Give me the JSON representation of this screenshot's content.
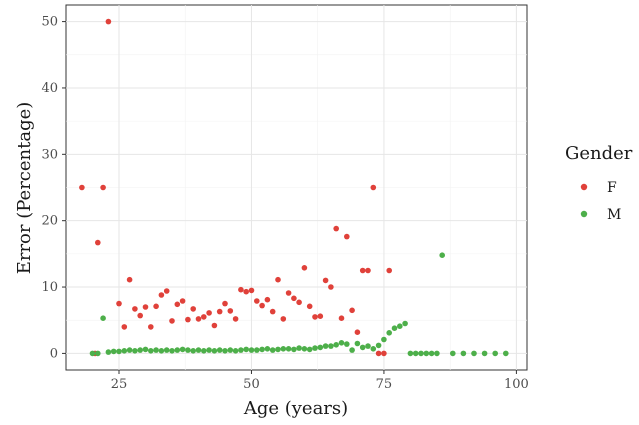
{
  "chart_data": {
    "type": "scatter",
    "xlabel": "Age (years)",
    "ylabel": "Error (Percentage)",
    "xlim": [
      15,
      102
    ],
    "ylim": [
      -2.5,
      52.5
    ],
    "xticks": [
      25,
      50,
      75,
      100
    ],
    "yticks": [
      0,
      10,
      20,
      30,
      40,
      50
    ],
    "grid": true,
    "legend": {
      "title": "Gender",
      "placement": "right"
    },
    "series": [
      {
        "name": "F",
        "color": "#e0413a",
        "points": [
          [
            18,
            25
          ],
          [
            20.5,
            0
          ],
          [
            21,
            16.7
          ],
          [
            22,
            25
          ],
          [
            23,
            50
          ],
          [
            25,
            7.5
          ],
          [
            26,
            4
          ],
          [
            27,
            11.1
          ],
          [
            28,
            6.7
          ],
          [
            29,
            5.7
          ],
          [
            30,
            7
          ],
          [
            31,
            4
          ],
          [
            32,
            7.1
          ],
          [
            33,
            8.8
          ],
          [
            34,
            9.4
          ],
          [
            35,
            4.9
          ],
          [
            36,
            7.4
          ],
          [
            37,
            7.9
          ],
          [
            38,
            5.1
          ],
          [
            39,
            6.7
          ],
          [
            40,
            5.2
          ],
          [
            41,
            5.5
          ],
          [
            42,
            6.1
          ],
          [
            43,
            4.2
          ],
          [
            44,
            6.3
          ],
          [
            45,
            7.5
          ],
          [
            46,
            6.4
          ],
          [
            47,
            5.2
          ],
          [
            48,
            9.6
          ],
          [
            49,
            9.3
          ],
          [
            50,
            9.5
          ],
          [
            51,
            7.9
          ],
          [
            52,
            7.2
          ],
          [
            53,
            8.1
          ],
          [
            54,
            6.3
          ],
          [
            55,
            11.1
          ],
          [
            56,
            5.2
          ],
          [
            57,
            9.1
          ],
          [
            58,
            8.3
          ],
          [
            59,
            7.7
          ],
          [
            60,
            12.9
          ],
          [
            61,
            7.1
          ],
          [
            62,
            5.5
          ],
          [
            63,
            5.6
          ],
          [
            64,
            11
          ],
          [
            65,
            10
          ],
          [
            66,
            18.8
          ],
          [
            67,
            5.3
          ],
          [
            68,
            17.6
          ],
          [
            69,
            6.5
          ],
          [
            70,
            3.2
          ],
          [
            71,
            12.5
          ],
          [
            72,
            12.5
          ],
          [
            73,
            25
          ],
          [
            74,
            0
          ],
          [
            75,
            0
          ],
          [
            76,
            12.5
          ]
        ]
      },
      {
        "name": "M",
        "color": "#4daf4a",
        "points": [
          [
            20,
            0
          ],
          [
            21,
            0
          ],
          [
            22,
            5.3
          ],
          [
            23,
            0.2
          ],
          [
            24,
            0.3
          ],
          [
            25,
            0.3
          ],
          [
            26,
            0.4
          ],
          [
            27,
            0.5
          ],
          [
            28,
            0.4
          ],
          [
            29,
            0.5
          ],
          [
            30,
            0.6
          ],
          [
            31,
            0.4
          ],
          [
            32,
            0.5
          ],
          [
            33,
            0.4
          ],
          [
            34,
            0.5
          ],
          [
            35,
            0.4
          ],
          [
            36,
            0.5
          ],
          [
            37,
            0.6
          ],
          [
            38,
            0.5
          ],
          [
            39,
            0.4
          ],
          [
            40,
            0.5
          ],
          [
            41,
            0.4
          ],
          [
            42,
            0.5
          ],
          [
            43,
            0.4
          ],
          [
            44,
            0.5
          ],
          [
            45,
            0.4
          ],
          [
            46,
            0.5
          ],
          [
            47,
            0.4
          ],
          [
            48,
            0.5
          ],
          [
            49,
            0.6
          ],
          [
            50,
            0.5
          ],
          [
            51,
            0.5
          ],
          [
            52,
            0.6
          ],
          [
            53,
            0.7
          ],
          [
            54,
            0.5
          ],
          [
            55,
            0.6
          ],
          [
            56,
            0.7
          ],
          [
            57,
            0.7
          ],
          [
            58,
            0.6
          ],
          [
            59,
            0.8
          ],
          [
            60,
            0.7
          ],
          [
            61,
            0.6
          ],
          [
            62,
            0.8
          ],
          [
            63,
            0.9
          ],
          [
            64,
            1.1
          ],
          [
            65,
            1.1
          ],
          [
            66,
            1.3
          ],
          [
            67,
            1.6
          ],
          [
            68,
            1.4
          ],
          [
            69,
            0.5
          ],
          [
            70,
            1.5
          ],
          [
            71,
            0.9
          ],
          [
            72,
            1.1
          ],
          [
            73,
            0.7
          ],
          [
            74,
            1.2
          ],
          [
            75,
            2.1
          ],
          [
            76,
            3.1
          ],
          [
            77,
            3.8
          ],
          [
            78,
            4.1
          ],
          [
            79,
            4.5
          ],
          [
            80,
            0
          ],
          [
            81,
            0
          ],
          [
            82,
            0
          ],
          [
            83,
            0
          ],
          [
            84,
            0
          ],
          [
            85,
            0
          ],
          [
            86,
            14.8
          ],
          [
            88,
            0
          ],
          [
            90,
            0
          ],
          [
            92,
            0
          ],
          [
            94,
            0
          ],
          [
            96,
            0
          ],
          [
            98,
            0
          ]
        ]
      }
    ]
  }
}
